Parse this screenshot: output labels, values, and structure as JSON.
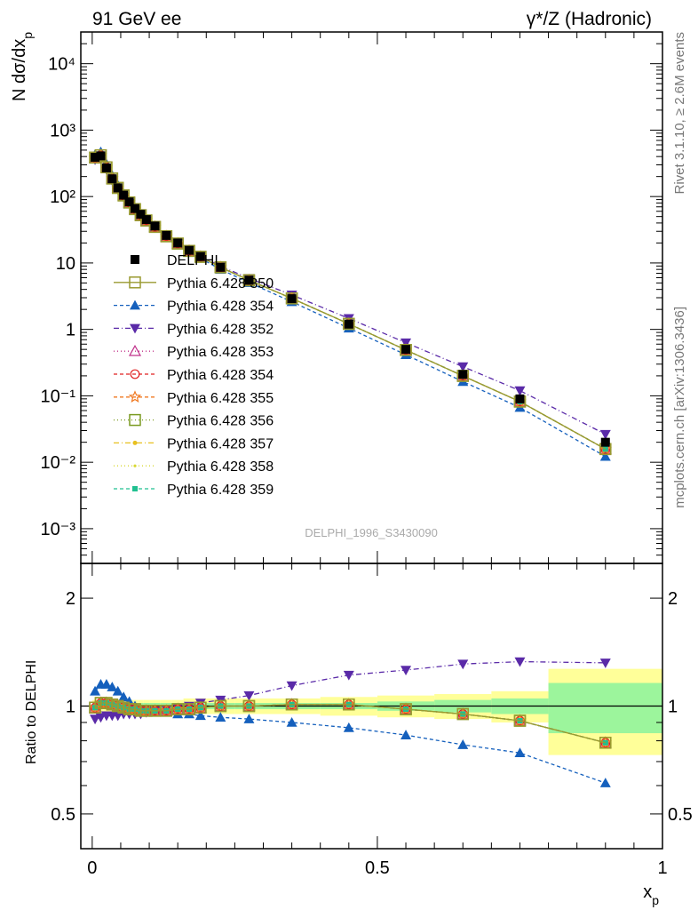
{
  "header": {
    "left": "91 GeV ee",
    "right": "γ*/Z (Hadronic)"
  },
  "side": {
    "top": "Rivet 3.1.10, ≥ 2.6M events",
    "bottom": "mcplots.cern.ch [arXiv:1306.3436]"
  },
  "analysis_tag": "DELPHI_1996_S3430090",
  "chart_data": [
    {
      "type": "line",
      "panel": "main",
      "ylabel": "N dσ/dx_p",
      "yscale": "log",
      "ylim": [
        0.0003,
        30000
      ],
      "xlim": [
        -0.02,
        1.0
      ],
      "y_ticks": [
        {
          "value": 0.001,
          "label": "10⁻³"
        },
        {
          "value": 0.01,
          "label": "10⁻²"
        },
        {
          "value": 0.1,
          "label": "10⁻¹"
        },
        {
          "value": 1,
          "label": "1"
        },
        {
          "value": 10,
          "label": "10"
        },
        {
          "value": 100,
          "label": "10²"
        },
        {
          "value": 1000,
          "label": "10³"
        },
        {
          "value": 10000,
          "label": "10⁴"
        }
      ],
      "x": [
        0.005,
        0.015,
        0.025,
        0.035,
        0.045,
        0.055,
        0.065,
        0.075,
        0.085,
        0.095,
        0.11,
        0.13,
        0.15,
        0.17,
        0.19,
        0.225,
        0.275,
        0.35,
        0.45,
        0.55,
        0.65,
        0.75,
        0.9
      ],
      "data": {
        "name": "DELPHI",
        "values": [
          390,
          410,
          270,
          185,
          135,
          105,
          83,
          66,
          54,
          45,
          36,
          26,
          20,
          15.5,
          12.5,
          8.6,
          5.5,
          2.9,
          1.2,
          0.5,
          0.21,
          0.09,
          0.02
        ]
      },
      "series": [
        {
          "name": "Pythia 6.428 350",
          "color": "#9a9a30",
          "dash": "",
          "marker": "square-open",
          "ratio": [
            0.99,
            1.02,
            1.02,
            1.01,
            1.0,
            0.99,
            0.98,
            0.98,
            0.97,
            0.97,
            0.97,
            0.97,
            0.98,
            0.98,
            0.99,
            1.0,
            1.0,
            1.01,
            1.01,
            0.98,
            0.95,
            0.91,
            0.79
          ]
        },
        {
          "name": "Pythia 6.428 354",
          "color": "#1560bd",
          "dash": "4,3",
          "marker": "triangle-up",
          "ratio": [
            1.1,
            1.15,
            1.15,
            1.13,
            1.1,
            1.06,
            1.03,
            1.0,
            0.98,
            0.97,
            0.97,
            0.96,
            0.95,
            0.95,
            0.94,
            0.93,
            0.92,
            0.9,
            0.87,
            0.83,
            0.78,
            0.74,
            0.61
          ]
        },
        {
          "name": "Pythia 6.428 352",
          "color": "#5a2aa8",
          "dash": "6,3,1,3",
          "marker": "triangle-down",
          "ratio": [
            0.92,
            0.93,
            0.94,
            0.94,
            0.94,
            0.95,
            0.95,
            0.95,
            0.95,
            0.96,
            0.97,
            0.98,
            0.99,
            1.0,
            1.02,
            1.04,
            1.07,
            1.14,
            1.22,
            1.26,
            1.31,
            1.33,
            1.32
          ]
        },
        {
          "name": "Pythia 6.428 353",
          "color": "#c0308a",
          "dash": "1,3",
          "marker": "triangle-open",
          "ratio": [
            0.99,
            1.02,
            1.02,
            1.01,
            1.0,
            0.99,
            0.98,
            0.98,
            0.97,
            0.97,
            0.97,
            0.97,
            0.98,
            0.98,
            0.99,
            1.0,
            1.0,
            1.01,
            1.01,
            0.98,
            0.95,
            0.91,
            0.79
          ]
        },
        {
          "name": "Pythia 6.428 354",
          "color": "#e02020",
          "dash": "4,3",
          "marker": "circle-open",
          "ratio": [
            0.99,
            1.02,
            1.02,
            1.01,
            1.0,
            0.99,
            0.98,
            0.98,
            0.97,
            0.97,
            0.97,
            0.97,
            0.98,
            0.98,
            0.99,
            1.0,
            1.0,
            1.01,
            1.01,
            0.98,
            0.95,
            0.91,
            0.79
          ]
        },
        {
          "name": "Pythia 6.428 355",
          "color": "#f07820",
          "dash": "4,3",
          "marker": "star-open",
          "ratio": [
            0.99,
            1.02,
            1.02,
            1.01,
            1.0,
            0.99,
            0.98,
            0.98,
            0.97,
            0.97,
            0.97,
            0.97,
            0.98,
            0.98,
            0.99,
            1.0,
            1.0,
            1.01,
            1.01,
            0.98,
            0.95,
            0.91,
            0.79
          ]
        },
        {
          "name": "Pythia 6.428 356",
          "color": "#7a9a20",
          "dash": "1,3",
          "marker": "square-open",
          "ratio": [
            0.99,
            1.02,
            1.02,
            1.01,
            1.0,
            0.99,
            0.98,
            0.98,
            0.97,
            0.97,
            0.97,
            0.97,
            0.98,
            0.98,
            0.99,
            1.0,
            1.0,
            1.01,
            1.01,
            0.98,
            0.95,
            0.91,
            0.79
          ]
        },
        {
          "name": "Pythia 6.428 357",
          "color": "#e8c020",
          "dash": "6,3,1,3",
          "marker": "dot",
          "ratio": [
            0.99,
            1.02,
            1.02,
            1.01,
            1.0,
            0.99,
            0.98,
            0.98,
            0.97,
            0.97,
            0.97,
            0.97,
            0.98,
            0.98,
            0.99,
            1.0,
            1.0,
            1.01,
            1.01,
            0.98,
            0.95,
            0.91,
            0.79
          ]
        },
        {
          "name": "Pythia 6.428 358",
          "color": "#d8d830",
          "dash": "1,3",
          "marker": "dot-small",
          "ratio": [
            0.99,
            1.02,
            1.02,
            1.01,
            1.0,
            0.99,
            0.98,
            0.98,
            0.97,
            0.97,
            0.97,
            0.97,
            0.98,
            0.98,
            0.99,
            1.0,
            1.0,
            1.01,
            1.01,
            0.98,
            0.95,
            0.91,
            0.79
          ]
        },
        {
          "name": "Pythia 6.428 359",
          "color": "#20c090",
          "dash": "4,3",
          "marker": "square-small",
          "ratio": [
            0.99,
            1.02,
            1.02,
            1.01,
            1.0,
            0.99,
            0.98,
            0.98,
            0.97,
            0.97,
            0.97,
            0.97,
            0.98,
            0.98,
            0.99,
            1.0,
            1.0,
            1.01,
            1.01,
            0.98,
            0.95,
            0.91,
            0.79
          ]
        }
      ],
      "legend_position": "middle-left"
    },
    {
      "type": "line",
      "panel": "ratio",
      "ylabel": "Ratio to DELPHI",
      "xlabel": "x_p",
      "yscale": "log",
      "ylim": [
        0.4,
        2.5
      ],
      "y_ticks": [
        {
          "value": 0.5,
          "label": "0.5"
        },
        {
          "value": 1,
          "label": "1"
        },
        {
          "value": 2,
          "label": "2"
        }
      ],
      "x_ticks": [
        {
          "value": 0,
          "label": "0"
        },
        {
          "value": 0.5,
          "label": "0.5"
        },
        {
          "value": 1,
          "label": "1"
        }
      ],
      "bands": {
        "edges": [
          0.0,
          0.01,
          0.02,
          0.03,
          0.04,
          0.05,
          0.06,
          0.07,
          0.08,
          0.09,
          0.1,
          0.12,
          0.14,
          0.16,
          0.18,
          0.2,
          0.25,
          0.3,
          0.4,
          0.5,
          0.6,
          0.7,
          0.8,
          1.0
        ],
        "stat_half_width": [
          0.02,
          0.02,
          0.02,
          0.02,
          0.02,
          0.02,
          0.02,
          0.02,
          0.02,
          0.02,
          0.02,
          0.02,
          0.02,
          0.02,
          0.02,
          0.02,
          0.02,
          0.02,
          0.02,
          0.03,
          0.04,
          0.05,
          0.16
        ],
        "total_half_width": [
          0.04,
          0.04,
          0.04,
          0.04,
          0.04,
          0.04,
          0.04,
          0.04,
          0.04,
          0.04,
          0.04,
          0.04,
          0.04,
          0.05,
          0.05,
          0.05,
          0.05,
          0.05,
          0.06,
          0.07,
          0.08,
          0.1,
          0.27
        ],
        "stat_color": "#9cf59c",
        "total_color": "#ffff99"
      }
    }
  ]
}
